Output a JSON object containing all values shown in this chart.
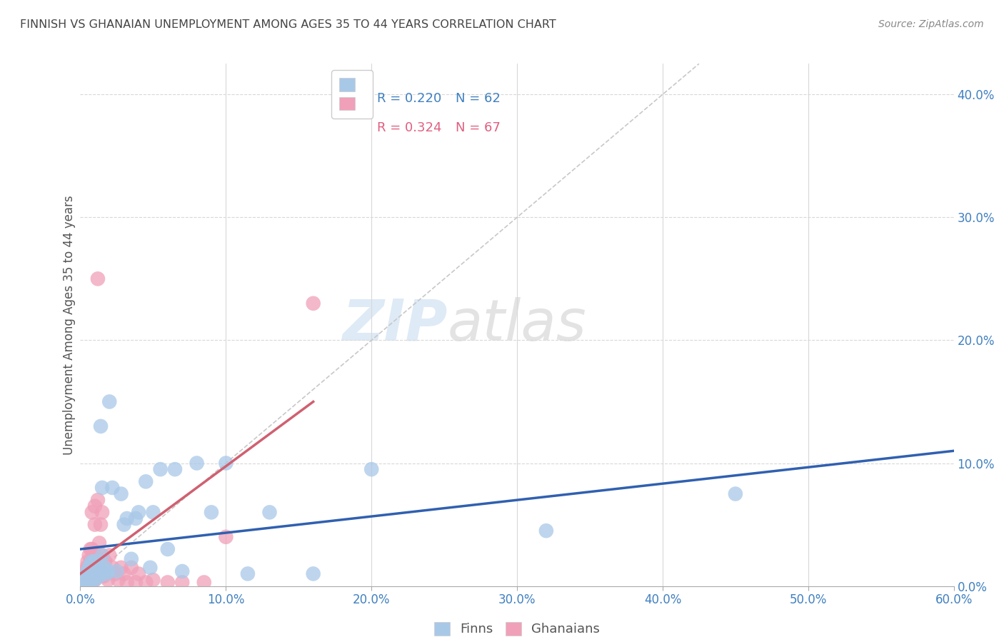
{
  "title": "FINNISH VS GHANAIAN UNEMPLOYMENT AMONG AGES 35 TO 44 YEARS CORRELATION CHART",
  "source": "Source: ZipAtlas.com",
  "ylabel": "Unemployment Among Ages 35 to 44 years",
  "xlim": [
    0,
    0.6
  ],
  "ylim": [
    0,
    0.425
  ],
  "watermark_zip": "ZIP",
  "watermark_atlas": "atlas",
  "legend_r_finn": "R = 0.220",
  "legend_n_finn": "N = 62",
  "legend_r_ghana": "R = 0.324",
  "legend_n_ghana": "N = 67",
  "finn_color": "#a8c8e8",
  "ghana_color": "#f0a0b8",
  "finn_line_color": "#3060b0",
  "ghana_line_color": "#d06070",
  "ref_line_color": "#c8c8c8",
  "finn_legend_color": "#4080c0",
  "ghana_legend_color": "#e06080",
  "finns_x": [
    0.002,
    0.003,
    0.003,
    0.004,
    0.004,
    0.004,
    0.005,
    0.005,
    0.005,
    0.005,
    0.006,
    0.006,
    0.006,
    0.007,
    0.007,
    0.007,
    0.008,
    0.008,
    0.008,
    0.009,
    0.009,
    0.01,
    0.01,
    0.01,
    0.011,
    0.011,
    0.012,
    0.012,
    0.013,
    0.013,
    0.014,
    0.015,
    0.015,
    0.016,
    0.017,
    0.018,
    0.019,
    0.02,
    0.022,
    0.025,
    0.028,
    0.03,
    0.032,
    0.035,
    0.038,
    0.04,
    0.045,
    0.048,
    0.05,
    0.055,
    0.06,
    0.065,
    0.07,
    0.08,
    0.09,
    0.1,
    0.115,
    0.13,
    0.16,
    0.2,
    0.32,
    0.45
  ],
  "finns_y": [
    0.005,
    0.008,
    0.003,
    0.01,
    0.005,
    0.003,
    0.012,
    0.007,
    0.004,
    0.002,
    0.015,
    0.008,
    0.003,
    0.018,
    0.01,
    0.005,
    0.02,
    0.012,
    0.005,
    0.015,
    0.007,
    0.02,
    0.012,
    0.005,
    0.015,
    0.008,
    0.018,
    0.008,
    0.02,
    0.008,
    0.13,
    0.08,
    0.025,
    0.012,
    0.015,
    0.01,
    0.012,
    0.15,
    0.08,
    0.012,
    0.075,
    0.05,
    0.055,
    0.022,
    0.055,
    0.06,
    0.085,
    0.015,
    0.06,
    0.095,
    0.03,
    0.095,
    0.012,
    0.1,
    0.06,
    0.1,
    0.01,
    0.06,
    0.01,
    0.095,
    0.045,
    0.075
  ],
  "ghanaians_x": [
    0.001,
    0.001,
    0.002,
    0.002,
    0.002,
    0.003,
    0.003,
    0.003,
    0.003,
    0.004,
    0.004,
    0.004,
    0.004,
    0.005,
    0.005,
    0.005,
    0.005,
    0.006,
    0.006,
    0.006,
    0.007,
    0.007,
    0.007,
    0.007,
    0.008,
    0.008,
    0.008,
    0.008,
    0.009,
    0.009,
    0.009,
    0.01,
    0.01,
    0.01,
    0.01,
    0.011,
    0.011,
    0.012,
    0.012,
    0.012,
    0.013,
    0.013,
    0.014,
    0.014,
    0.015,
    0.015,
    0.016,
    0.017,
    0.018,
    0.019,
    0.02,
    0.022,
    0.024,
    0.026,
    0.028,
    0.03,
    0.032,
    0.035,
    0.038,
    0.04,
    0.045,
    0.05,
    0.06,
    0.07,
    0.085,
    0.1,
    0.16
  ],
  "ghanaians_y": [
    0.005,
    0.003,
    0.008,
    0.005,
    0.002,
    0.012,
    0.007,
    0.004,
    0.002,
    0.015,
    0.008,
    0.005,
    0.002,
    0.02,
    0.012,
    0.007,
    0.003,
    0.025,
    0.015,
    0.005,
    0.03,
    0.02,
    0.01,
    0.003,
    0.03,
    0.06,
    0.015,
    0.005,
    0.025,
    0.015,
    0.005,
    0.05,
    0.065,
    0.02,
    0.005,
    0.025,
    0.008,
    0.25,
    0.07,
    0.015,
    0.035,
    0.01,
    0.05,
    0.01,
    0.06,
    0.025,
    0.008,
    0.02,
    0.01,
    0.005,
    0.025,
    0.015,
    0.01,
    0.005,
    0.015,
    0.01,
    0.003,
    0.015,
    0.003,
    0.01,
    0.003,
    0.005,
    0.003,
    0.003,
    0.003,
    0.04,
    0.23
  ],
  "finn_trend_x": [
    0.0,
    0.6
  ],
  "finn_trend_y": [
    0.03,
    0.11
  ],
  "ghana_trend_x": [
    0.0,
    0.16
  ],
  "ghana_trend_y": [
    0.01,
    0.15
  ]
}
